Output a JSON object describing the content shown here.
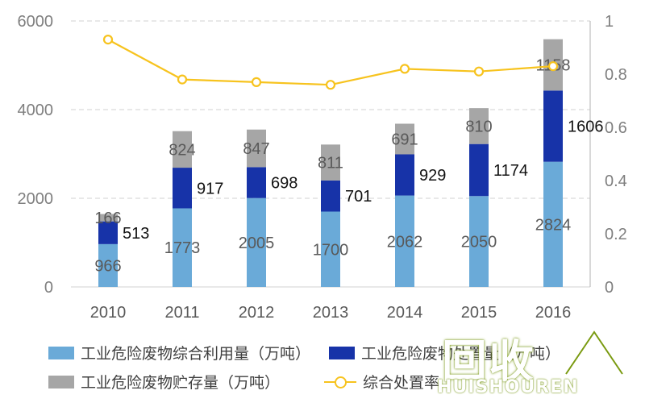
{
  "chart_data": {
    "type": "bar",
    "stacked": true,
    "categories": [
      "2010",
      "2011",
      "2012",
      "2013",
      "2014",
      "2015",
      "2016"
    ],
    "series": [
      {
        "name": "工业危险废物综合利用量（万吨）",
        "values": [
          966,
          1773,
          2005,
          1700,
          2062,
          2050,
          2824
        ],
        "color": "#6AAAD8",
        "axis": "left"
      },
      {
        "name": "工业危险废物处置量（万吨）",
        "values": [
          513,
          917,
          698,
          701,
          929,
          1174,
          1606
        ],
        "color": "#1733A8",
        "axis": "left"
      },
      {
        "name": "工业危险废物贮存量（万吨）",
        "values": [
          166,
          824,
          847,
          811,
          691,
          810,
          1158
        ],
        "color": "#A6A6A6",
        "axis": "left"
      },
      {
        "name": "综合处置率",
        "type": "line",
        "values": [
          0.93,
          0.78,
          0.77,
          0.76,
          0.82,
          0.81,
          0.83
        ],
        "color": "#F7C31E",
        "axis": "right"
      }
    ],
    "ylim_left": [
      0,
      6000
    ],
    "yticks_left": [
      0,
      2000,
      4000,
      6000
    ],
    "ylim_right": [
      0,
      1
    ],
    "yticks_right": [
      "0",
      "0.2",
      "0.4",
      "0.6",
      "0.8",
      "1"
    ],
    "grid": "horizontal dashed",
    "legend_position": "bottom",
    "title": "",
    "xlabel": "",
    "ylabel": ""
  },
  "legend": {
    "item1": "工业危险废物综合利用量（万吨）",
    "item2": "工业危险废物处置量（万吨）",
    "item3": "工业危险废物贮存量（万吨）",
    "item4": "综合处置率"
  },
  "watermark": {
    "chinese": "回收",
    "english": "HUISHOUREN"
  }
}
